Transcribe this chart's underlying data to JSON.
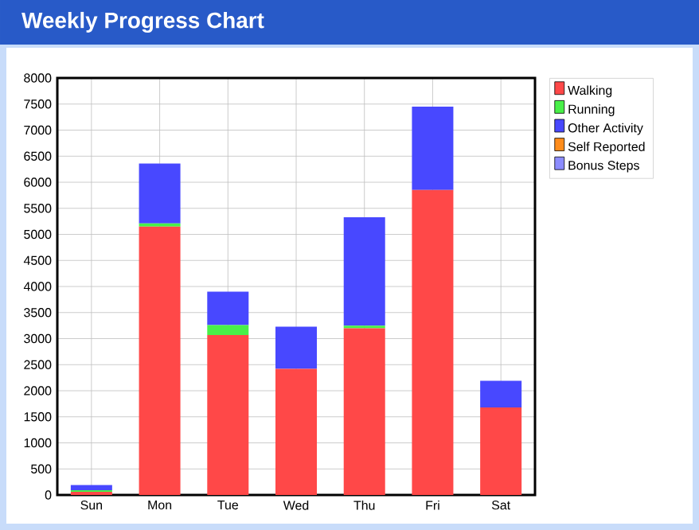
{
  "chart_data": {
    "type": "bar",
    "title": "Weekly Progress Chart",
    "stacked": true,
    "categories": [
      "Sun",
      "Mon",
      "Tue",
      "Wed",
      "Thu",
      "Fri",
      "Sat"
    ],
    "series": [
      {
        "name": "Walking",
        "color": "#ff4848",
        "values": [
          60,
          5150,
          3070,
          2420,
          3200,
          5850,
          1680
        ]
      },
      {
        "name": "Running",
        "color": "#48f048",
        "values": [
          30,
          60,
          190,
          0,
          50,
          0,
          0
        ]
      },
      {
        "name": "Other Activity",
        "color": "#4848ff",
        "values": [
          100,
          1150,
          640,
          810,
          2080,
          1600,
          510
        ]
      },
      {
        "name": "Self Reported",
        "color": "#ff8c1a",
        "values": [
          0,
          0,
          0,
          0,
          0,
          0,
          0
        ]
      },
      {
        "name": "Bonus Steps",
        "color": "#8c8cff",
        "values": [
          0,
          0,
          0,
          0,
          0,
          0,
          0
        ]
      }
    ],
    "ylim": [
      0,
      8000
    ],
    "yticks": [
      0,
      500,
      1000,
      1500,
      2000,
      2500,
      3000,
      3500,
      4000,
      4500,
      5000,
      5500,
      6000,
      6500,
      7000,
      7500,
      8000
    ],
    "grid": true,
    "legend": "right"
  }
}
